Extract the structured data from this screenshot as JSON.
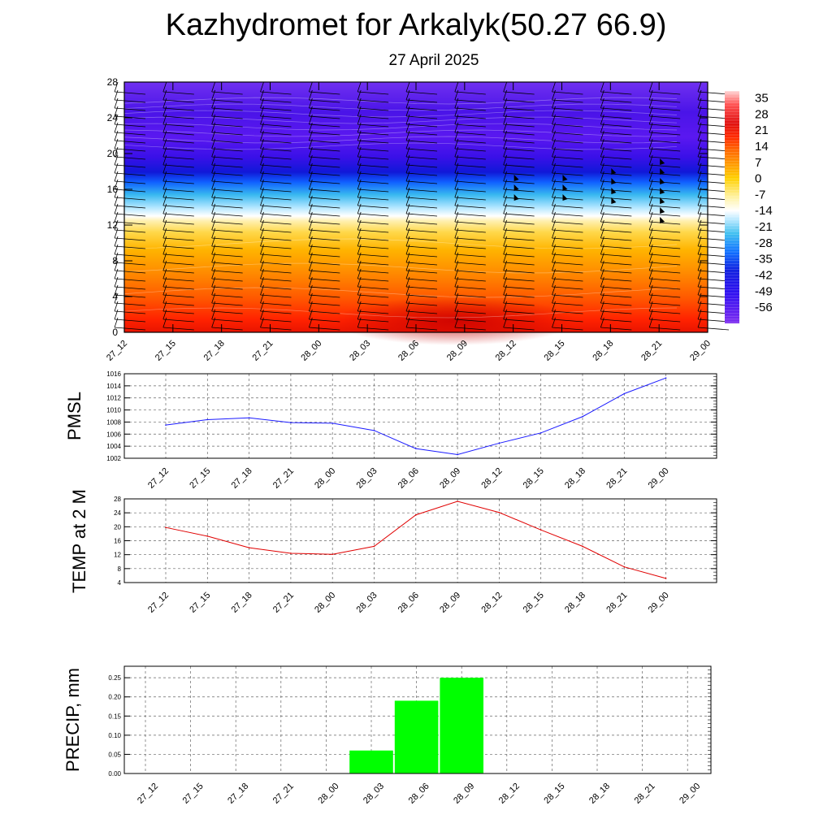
{
  "title": "Kazhydromet for Arkalyk(50.27 66.9)",
  "subtitle": "27 April 2025",
  "colors": {
    "pmsl_line": "#1a1aff",
    "temp_line": "#e00000",
    "precip_bar": "#00ff00",
    "axis": "#000000",
    "grid": "#666666"
  },
  "chart_data": [
    {
      "type": "heatmap",
      "name_hint": "cross-section",
      "x": [
        "27_12",
        "27_15",
        "27_18",
        "27_21",
        "28_00",
        "28_03",
        "28_06",
        "28_09",
        "28_12",
        "28_15",
        "28_18",
        "28_21",
        "29_00"
      ],
      "yticks": [
        "0",
        "4",
        "8",
        "12",
        "16",
        "20",
        "24",
        "28"
      ],
      "ylim": [
        0,
        28
      ],
      "colorbar": {
        "labels": [
          "35",
          "28",
          "21",
          "14",
          "7",
          "0",
          "-7",
          "-14",
          "-21",
          "-28",
          "-35",
          "-42",
          "-49",
          "-56"
        ],
        "range": [
          -63,
          38
        ],
        "stops": [
          {
            "v": 38,
            "c": "#ffd6d6"
          },
          {
            "v": 32,
            "c": "#ff5050"
          },
          {
            "v": 24,
            "c": "#e01010"
          },
          {
            "v": 18,
            "c": "#ff2a00"
          },
          {
            "v": 12,
            "c": "#ff6a00"
          },
          {
            "v": 6,
            "c": "#ff9c00"
          },
          {
            "v": 0,
            "c": "#ffd000"
          },
          {
            "v": -8,
            "c": "#fff2a0"
          },
          {
            "v": -14,
            "c": "#ffffff"
          },
          {
            "v": -18,
            "c": "#b8e8ff"
          },
          {
            "v": -24,
            "c": "#40c0f0"
          },
          {
            "v": -32,
            "c": "#1070ff"
          },
          {
            "v": -40,
            "c": "#1020e0"
          },
          {
            "v": -50,
            "c": "#3010f0"
          },
          {
            "v": -58,
            "c": "#6020f0"
          },
          {
            "v": -63,
            "c": "#8030f0"
          }
        ]
      }
    },
    {
      "type": "line",
      "ylabel": "PMSL",
      "x": [
        "27_12",
        "27_15",
        "27_18",
        "27_21",
        "28_00",
        "28_03",
        "28_06",
        "28_09",
        "28_12",
        "28_15",
        "28_18",
        "28_21",
        "29_00"
      ],
      "values": [
        1007.5,
        1008.4,
        1008.7,
        1007.9,
        1007.8,
        1006.6,
        1003.6,
        1002.6,
        1004.5,
        1006.2,
        1008.9,
        1012.7,
        1015.3
      ],
      "ylim": [
        1002,
        1016
      ],
      "yticks": [
        "1002",
        "1004",
        "1006",
        "1008",
        "1010",
        "1012",
        "1014",
        "1016"
      ]
    },
    {
      "type": "line",
      "ylabel": "TEMP at 2 M",
      "x": [
        "27_12",
        "27_15",
        "27_18",
        "27_21",
        "28_00",
        "28_03",
        "28_06",
        "28_09",
        "28_12",
        "28_15",
        "28_18",
        "28_21",
        "29_00"
      ],
      "values": [
        19.8,
        17.3,
        14.0,
        12.4,
        12.1,
        14.4,
        23.4,
        27.3,
        24.1,
        19.1,
        14.4,
        8.5,
        5.2
      ],
      "ylim": [
        4,
        28
      ],
      "yticks": [
        "4",
        "8",
        "12",
        "16",
        "20",
        "24",
        "28"
      ]
    },
    {
      "type": "bar",
      "ylabel": "PRECIP, mm",
      "categories": [
        "27_12",
        "27_15",
        "27_18",
        "27_21",
        "28_00",
        "28_03",
        "28_06",
        "28_09",
        "28_12",
        "28_15",
        "28_18",
        "28_21",
        "29_00"
      ],
      "values": [
        0,
        0,
        0,
        0,
        0,
        0.06,
        0.19,
        0.25,
        0,
        0,
        0,
        0,
        0
      ],
      "ylim": [
        0,
        0.28
      ],
      "yticks": [
        "0.00",
        "0.05",
        "0.10",
        "0.15",
        "0.20",
        "0.25"
      ]
    }
  ]
}
